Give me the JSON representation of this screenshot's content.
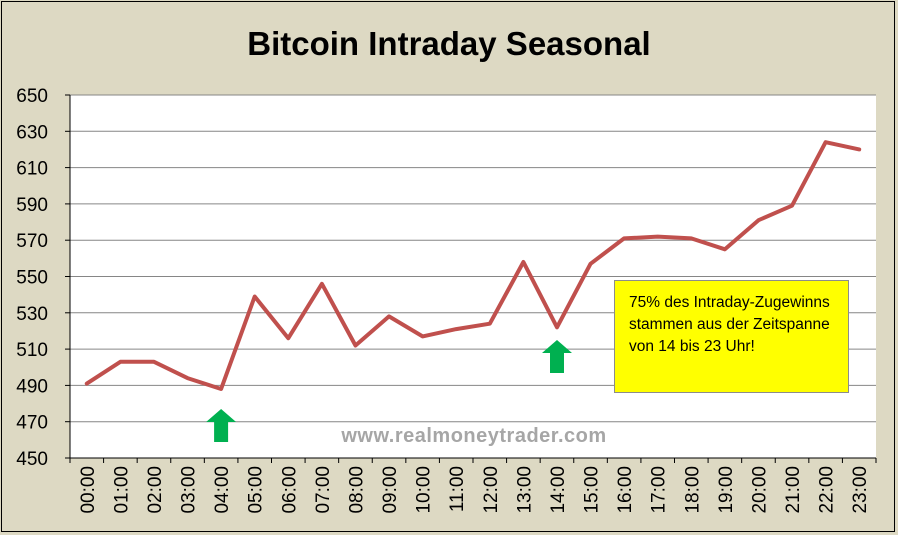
{
  "colors": {
    "background": "#ddd9c3",
    "plot_background": "#ffffff",
    "line": "#c0504d",
    "grid": "#868686",
    "arrow": "#00b050",
    "note_background": "#ffff00",
    "watermark": "#a6a6a6"
  },
  "watermark": "www.realmoneytrader.com",
  "note": "75% des Intraday-Zugewinns stammen aus der Zeitspanne von 14 bis 23 Uhr!",
  "chart_data": {
    "type": "line",
    "title": "Bitcoin Intraday Seasonal",
    "xlabel": "",
    "ylabel": "",
    "categories": [
      "00:00",
      "01:00",
      "02:00",
      "03:00",
      "04:00",
      "05:00",
      "06:00",
      "07:00",
      "08:00",
      "09:00",
      "10:00",
      "11:00",
      "12:00",
      "13:00",
      "14:00",
      "15:00",
      "16:00",
      "17:00",
      "18:00",
      "19:00",
      "20:00",
      "21:00",
      "22:00",
      "23:00"
    ],
    "series": [
      {
        "values": [
          491,
          503,
          503,
          494,
          488,
          539,
          516,
          546,
          512,
          528,
          517,
          521,
          524,
          558,
          522,
          557,
          571,
          572,
          571,
          565,
          581,
          589,
          624,
          620
        ]
      }
    ],
    "ylim": [
      450,
      650
    ],
    "yticks": [
      450,
      470,
      490,
      510,
      530,
      550,
      570,
      590,
      610,
      630,
      650
    ],
    "grid": true,
    "legend": "none",
    "markers": [
      {
        "type": "up-arrow",
        "category": "04:00",
        "value": 467
      },
      {
        "type": "up-arrow",
        "category": "14:00",
        "value": 505
      }
    ]
  }
}
